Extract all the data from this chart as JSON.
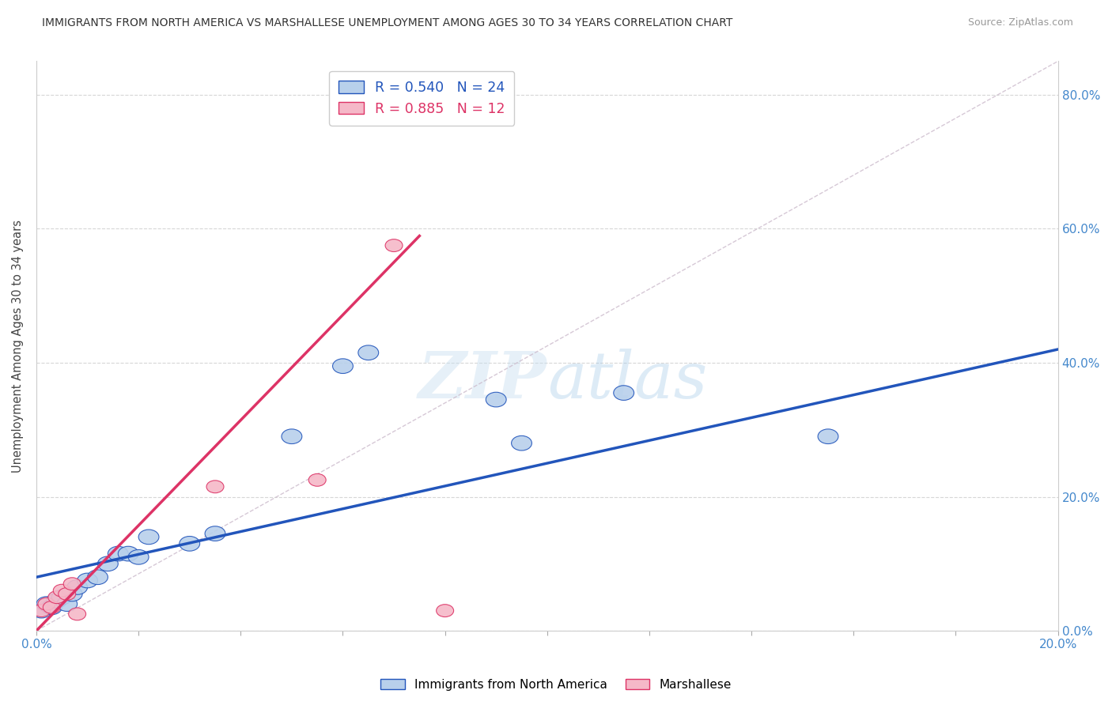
{
  "title": "IMMIGRANTS FROM NORTH AMERICA VS MARSHALLESE UNEMPLOYMENT AMONG AGES 30 TO 34 YEARS CORRELATION CHART",
  "source": "Source: ZipAtlas.com",
  "ylabel": "Unemployment Among Ages 30 to 34 years",
  "xlim": [
    0.0,
    0.2
  ],
  "ylim": [
    0.0,
    0.85
  ],
  "x_ticks": [
    0.0,
    0.02,
    0.04,
    0.06,
    0.08,
    0.1,
    0.12,
    0.14,
    0.16,
    0.18,
    0.2
  ],
  "y_ticks": [
    0.0,
    0.2,
    0.4,
    0.6,
    0.8
  ],
  "y_tick_labels": [
    "0.0%",
    "20.0%",
    "40.0%",
    "60.0%",
    "80.0%"
  ],
  "blue_R": 0.54,
  "blue_N": 24,
  "pink_R": 0.885,
  "pink_N": 12,
  "blue_scatter_x": [
    0.001,
    0.002,
    0.003,
    0.004,
    0.005,
    0.006,
    0.007,
    0.008,
    0.01,
    0.012,
    0.014,
    0.016,
    0.018,
    0.02,
    0.022,
    0.03,
    0.035,
    0.05,
    0.06,
    0.065,
    0.09,
    0.095,
    0.115,
    0.155
  ],
  "blue_scatter_y": [
    0.03,
    0.04,
    0.035,
    0.045,
    0.05,
    0.04,
    0.055,
    0.065,
    0.075,
    0.08,
    0.1,
    0.115,
    0.115,
    0.11,
    0.14,
    0.13,
    0.145,
    0.29,
    0.395,
    0.415,
    0.345,
    0.28,
    0.355,
    0.29
  ],
  "pink_scatter_x": [
    0.001,
    0.002,
    0.003,
    0.004,
    0.005,
    0.006,
    0.007,
    0.008,
    0.035,
    0.055,
    0.07,
    0.08
  ],
  "pink_scatter_y": [
    0.03,
    0.04,
    0.035,
    0.05,
    0.06,
    0.055,
    0.07,
    0.025,
    0.215,
    0.225,
    0.575,
    0.03
  ],
  "blue_color": "#b8d0eb",
  "pink_color": "#f5b8c8",
  "blue_line_color": "#2255bb",
  "pink_line_color": "#dd3366",
  "diagonal_color": "#ccbbcc",
  "watermark_color": "#ddeef8",
  "legend_blue_label": "Immigrants from North America",
  "legend_pink_label": "Marshallese",
  "background_color": "#ffffff",
  "grid_color": "#cccccc",
  "tick_color": "#4488cc",
  "title_color": "#333333",
  "source_color": "#999999"
}
